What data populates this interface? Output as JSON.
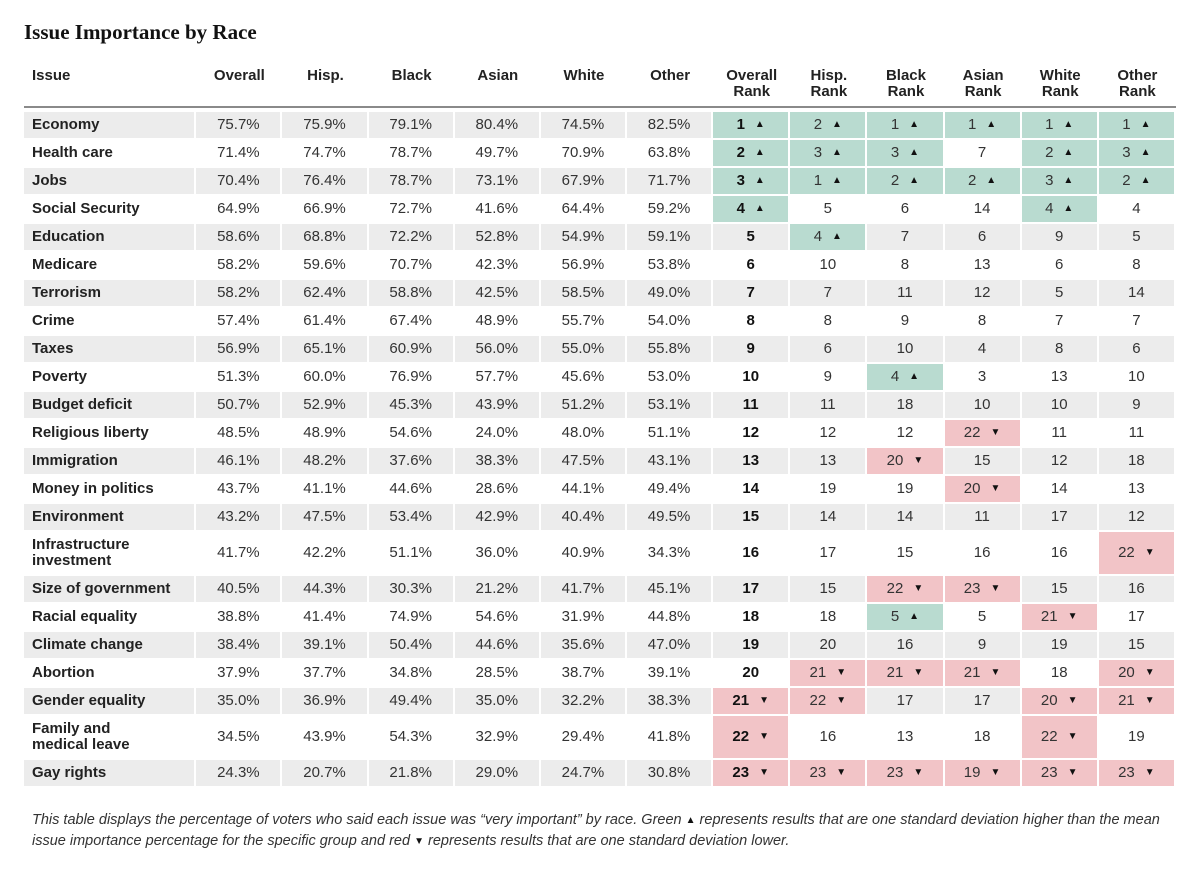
{
  "title": "Issue Importance by Race",
  "headers": {
    "issue": "Issue",
    "overall": "Overall",
    "hisp": "Hisp.",
    "black": "Black",
    "asian": "Asian",
    "white": "White",
    "other": "Other",
    "overall_rank": [
      "Overall",
      "Rank"
    ],
    "hisp_rank": [
      "Hisp.",
      "Rank"
    ],
    "black_rank": [
      "Black",
      "Rank"
    ],
    "asian_rank": [
      "Asian",
      "Rank"
    ],
    "white_rank": [
      "White",
      "Rank"
    ],
    "other_rank": [
      "Other",
      "Rank"
    ]
  },
  "footnote": {
    "part1": "This table displays the percentage of voters who said each issue was “very important” by race. Green ",
    "part2": " represents results that are one standard deviation higher than the mean issue importance percentage for the specific group and red ",
    "part3": " represents results that are one standard deviation lower.",
    "up_icon": "triangle-up-icon",
    "down_icon": "triangle-down-icon"
  },
  "colors": {
    "high": "#b9dbd0",
    "low": "#f2c4c7",
    "shade": "#ececec"
  },
  "chart_data": {
    "type": "table",
    "title": "Issue Importance by Race",
    "columns": [
      "Issue",
      "Overall",
      "Hisp.",
      "Black",
      "Asian",
      "White",
      "Other",
      "Overall Rank",
      "Hisp. Rank",
      "Black Rank",
      "Asian Rank",
      "White Rank",
      "Other Rank"
    ],
    "rows": [
      {
        "issue": "Economy",
        "pct": [
          "75.7%",
          "75.9%",
          "79.1%",
          "80.4%",
          "74.5%",
          "82.5%"
        ],
        "ranks": [
          1,
          2,
          1,
          1,
          1,
          1
        ],
        "flags": [
          "up",
          "up",
          "up",
          "up",
          "up",
          "up"
        ]
      },
      {
        "issue": "Health care",
        "pct": [
          "71.4%",
          "74.7%",
          "78.7%",
          "49.7%",
          "70.9%",
          "63.8%"
        ],
        "ranks": [
          2,
          3,
          3,
          7,
          2,
          3
        ],
        "flags": [
          "up",
          "up",
          "up",
          "",
          "up",
          "up"
        ]
      },
      {
        "issue": "Jobs",
        "pct": [
          "70.4%",
          "76.4%",
          "78.7%",
          "73.1%",
          "67.9%",
          "71.7%"
        ],
        "ranks": [
          3,
          1,
          2,
          2,
          3,
          2
        ],
        "flags": [
          "up",
          "up",
          "up",
          "up",
          "up",
          "up"
        ]
      },
      {
        "issue": "Social Security",
        "pct": [
          "64.9%",
          "66.9%",
          "72.7%",
          "41.6%",
          "64.4%",
          "59.2%"
        ],
        "ranks": [
          4,
          5,
          6,
          14,
          4,
          4
        ],
        "flags": [
          "up",
          "",
          "",
          "",
          "up",
          ""
        ]
      },
      {
        "issue": "Education",
        "pct": [
          "58.6%",
          "68.8%",
          "72.2%",
          "52.8%",
          "54.9%",
          "59.1%"
        ],
        "ranks": [
          5,
          4,
          7,
          6,
          9,
          5
        ],
        "flags": [
          "",
          "up",
          "",
          "",
          "",
          ""
        ]
      },
      {
        "issue": "Medicare",
        "pct": [
          "58.2%",
          "59.6%",
          "70.7%",
          "42.3%",
          "56.9%",
          "53.8%"
        ],
        "ranks": [
          6,
          10,
          8,
          13,
          6,
          8
        ],
        "flags": [
          "",
          "",
          "",
          "",
          "",
          ""
        ]
      },
      {
        "issue": "Terrorism",
        "pct": [
          "58.2%",
          "62.4%",
          "58.8%",
          "42.5%",
          "58.5%",
          "49.0%"
        ],
        "ranks": [
          7,
          7,
          11,
          12,
          5,
          14
        ],
        "flags": [
          "",
          "",
          "",
          "",
          "",
          ""
        ]
      },
      {
        "issue": "Crime",
        "pct": [
          "57.4%",
          "61.4%",
          "67.4%",
          "48.9%",
          "55.7%",
          "54.0%"
        ],
        "ranks": [
          8,
          8,
          9,
          8,
          7,
          7
        ],
        "flags": [
          "",
          "",
          "",
          "",
          "",
          ""
        ]
      },
      {
        "issue": "Taxes",
        "pct": [
          "56.9%",
          "65.1%",
          "60.9%",
          "56.0%",
          "55.0%",
          "55.8%"
        ],
        "ranks": [
          9,
          6,
          10,
          4,
          8,
          6
        ],
        "flags": [
          "",
          "",
          "",
          "",
          "",
          ""
        ]
      },
      {
        "issue": "Poverty",
        "pct": [
          "51.3%",
          "60.0%",
          "76.9%",
          "57.7%",
          "45.6%",
          "53.0%"
        ],
        "ranks": [
          10,
          9,
          4,
          3,
          13,
          10
        ],
        "flags": [
          "",
          "",
          "up",
          "",
          "",
          ""
        ]
      },
      {
        "issue": "Budget deficit",
        "pct": [
          "50.7%",
          "52.9%",
          "45.3%",
          "43.9%",
          "51.2%",
          "53.1%"
        ],
        "ranks": [
          11,
          11,
          18,
          10,
          10,
          9
        ],
        "flags": [
          "",
          "",
          "",
          "",
          "",
          ""
        ]
      },
      {
        "issue": "Religious liberty",
        "pct": [
          "48.5%",
          "48.9%",
          "54.6%",
          "24.0%",
          "48.0%",
          "51.1%"
        ],
        "ranks": [
          12,
          12,
          12,
          22,
          11,
          11
        ],
        "flags": [
          "",
          "",
          "",
          "down",
          "",
          ""
        ]
      },
      {
        "issue": "Immigration",
        "pct": [
          "46.1%",
          "48.2%",
          "37.6%",
          "38.3%",
          "47.5%",
          "43.1%"
        ],
        "ranks": [
          13,
          13,
          20,
          15,
          12,
          18
        ],
        "flags": [
          "",
          "",
          "down",
          "",
          "",
          ""
        ]
      },
      {
        "issue": "Money in politics",
        "pct": [
          "43.7%",
          "41.1%",
          "44.6%",
          "28.6%",
          "44.1%",
          "49.4%"
        ],
        "ranks": [
          14,
          19,
          19,
          20,
          14,
          13
        ],
        "flags": [
          "",
          "",
          "",
          "down",
          "",
          ""
        ]
      },
      {
        "issue": "Environment",
        "pct": [
          "43.2%",
          "47.5%",
          "53.4%",
          "42.9%",
          "40.4%",
          "49.5%"
        ],
        "ranks": [
          15,
          14,
          14,
          11,
          17,
          12
        ],
        "flags": [
          "",
          "",
          "",
          "",
          "",
          ""
        ]
      },
      {
        "issue": "Infrastructure investment",
        "pct": [
          "41.7%",
          "42.2%",
          "51.1%",
          "36.0%",
          "40.9%",
          "34.3%"
        ],
        "ranks": [
          16,
          17,
          15,
          16,
          16,
          22
        ],
        "flags": [
          "",
          "",
          "",
          "",
          "",
          "down"
        ]
      },
      {
        "issue": "Size of government",
        "pct": [
          "40.5%",
          "44.3%",
          "30.3%",
          "21.2%",
          "41.7%",
          "45.1%"
        ],
        "ranks": [
          17,
          15,
          22,
          23,
          15,
          16
        ],
        "flags": [
          "",
          "",
          "down",
          "down",
          "",
          ""
        ]
      },
      {
        "issue": "Racial equality",
        "pct": [
          "38.8%",
          "41.4%",
          "74.9%",
          "54.6%",
          "31.9%",
          "44.8%"
        ],
        "ranks": [
          18,
          18,
          5,
          5,
          21,
          17
        ],
        "flags": [
          "",
          "",
          "up",
          "",
          "down",
          ""
        ]
      },
      {
        "issue": "Climate change",
        "pct": [
          "38.4%",
          "39.1%",
          "50.4%",
          "44.6%",
          "35.6%",
          "47.0%"
        ],
        "ranks": [
          19,
          20,
          16,
          9,
          19,
          15
        ],
        "flags": [
          "",
          "",
          "",
          "",
          "",
          ""
        ]
      },
      {
        "issue": "Abortion",
        "pct": [
          "37.9%",
          "37.7%",
          "34.8%",
          "28.5%",
          "38.7%",
          "39.1%"
        ],
        "ranks": [
          20,
          21,
          21,
          21,
          18,
          20
        ],
        "flags": [
          "",
          "down",
          "down",
          "down",
          "",
          "down"
        ]
      },
      {
        "issue": "Gender equality",
        "pct": [
          "35.0%",
          "36.9%",
          "49.4%",
          "35.0%",
          "32.2%",
          "38.3%"
        ],
        "ranks": [
          21,
          22,
          17,
          17,
          20,
          21
        ],
        "flags": [
          "down",
          "down",
          "",
          "",
          "down",
          "down"
        ]
      },
      {
        "issue": "Family and medical leave",
        "pct": [
          "34.5%",
          "43.9%",
          "54.3%",
          "32.9%",
          "29.4%",
          "41.8%"
        ],
        "ranks": [
          22,
          16,
          13,
          18,
          22,
          19
        ],
        "flags": [
          "down",
          "",
          "",
          "",
          "down",
          ""
        ]
      },
      {
        "issue": "Gay rights",
        "pct": [
          "24.3%",
          "20.7%",
          "21.8%",
          "29.0%",
          "24.7%",
          "30.8%"
        ],
        "ranks": [
          23,
          23,
          23,
          19,
          23,
          23
        ],
        "flags": [
          "down",
          "down",
          "down",
          "down",
          "down",
          "down"
        ]
      }
    ]
  }
}
